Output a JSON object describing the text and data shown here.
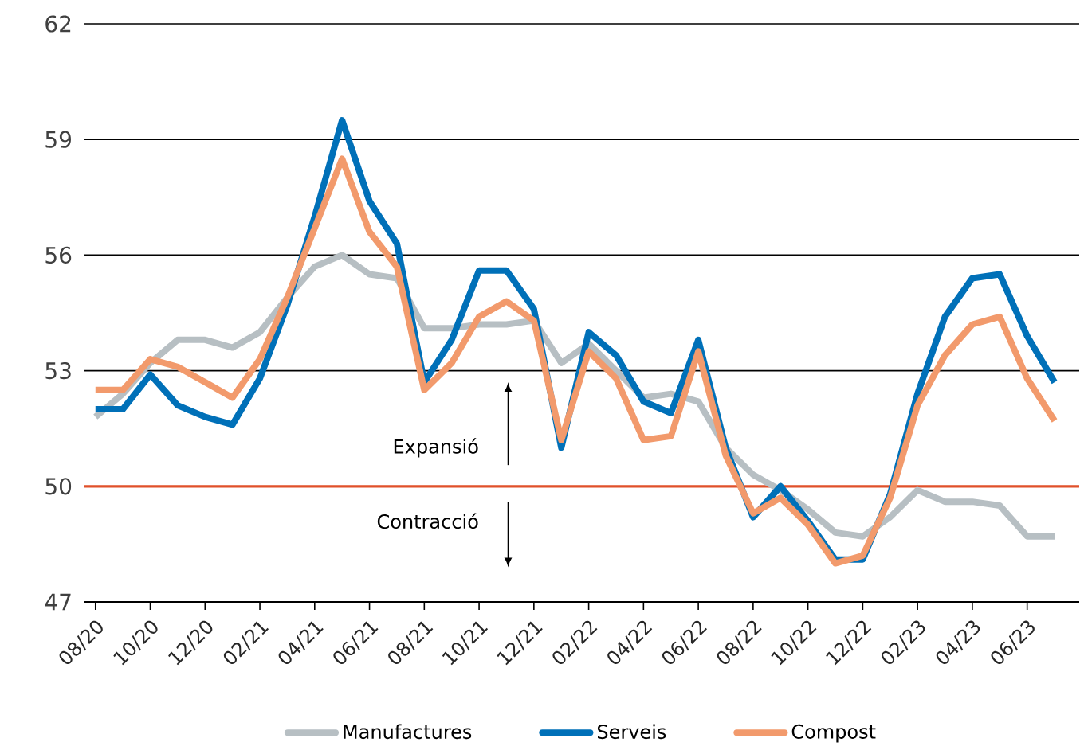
{
  "chart_data": {
    "type": "line",
    "categories": [
      "08/20",
      null,
      "10/20",
      null,
      "12/20",
      null,
      "02/21",
      null,
      "04/21",
      null,
      "06/21",
      null,
      "08/21",
      null,
      "10/21",
      null,
      "12/21",
      null,
      "02/22",
      null,
      "04/22",
      null,
      "06/22",
      null,
      "08/22",
      null,
      "10/22",
      null,
      "12/22",
      null,
      "02/23",
      null,
      "04/23",
      null,
      "06/23",
      null
    ],
    "series": [
      {
        "name": "Manufactures",
        "color": "#b7bfc3",
        "values": [
          51.8,
          52.4,
          53.2,
          53.8,
          53.8,
          53.6,
          54.0,
          54.9,
          55.7,
          56.0,
          55.5,
          55.4,
          54.1,
          54.1,
          54.2,
          54.2,
          54.3,
          53.2,
          53.7,
          53.0,
          52.3,
          52.4,
          52.2,
          51.0,
          50.3,
          49.9,
          49.4,
          48.8,
          48.7,
          49.2,
          49.9,
          49.6,
          49.6,
          49.5,
          48.7,
          48.7
        ]
      },
      {
        "name": "Serveis",
        "color": "#0070b8",
        "values": [
          52.0,
          52.0,
          52.9,
          52.1,
          51.8,
          51.6,
          52.8,
          54.7,
          57.0,
          59.5,
          57.4,
          56.3,
          52.7,
          53.8,
          55.6,
          55.6,
          54.6,
          51.0,
          54.0,
          53.4,
          52.2,
          51.9,
          53.8,
          51.0,
          49.2,
          50.0,
          49.1,
          48.1,
          48.1,
          49.8,
          52.4,
          54.4,
          55.4,
          55.5,
          53.9,
          52.7
        ]
      },
      {
        "name": "Compost",
        "color": "#f29a6c",
        "values": [
          52.5,
          52.5,
          53.3,
          53.1,
          52.7,
          52.3,
          53.3,
          54.9,
          56.7,
          58.5,
          56.6,
          55.7,
          52.5,
          53.2,
          54.4,
          54.8,
          54.3,
          51.2,
          53.5,
          52.8,
          51.2,
          51.3,
          53.5,
          50.8,
          49.3,
          49.7,
          49.0,
          48.0,
          48.2,
          49.7,
          52.1,
          53.4,
          54.2,
          54.4,
          52.8,
          51.7
        ]
      }
    ],
    "ylim": [
      47,
      62
    ],
    "yticks": [
      47,
      50,
      53,
      56,
      59,
      62
    ],
    "grid": "y",
    "legend": "bottom",
    "ref_lines": [
      {
        "axis": "y",
        "value": 50,
        "color": "#e0502a"
      }
    ],
    "annotations": [
      "Expansió",
      "Contracció"
    ]
  }
}
